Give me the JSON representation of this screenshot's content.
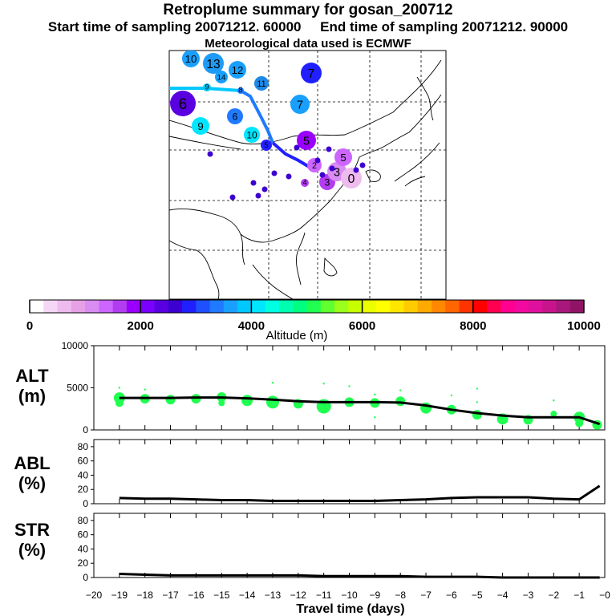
{
  "header": {
    "title": "Retroplume summary for gosan_200712",
    "start_label": "Start time of sampling 20071212. 60000",
    "end_label": "End time of sampling 20071212. 90000",
    "met": "Meteorological data used is ECMWF"
  },
  "colorbar": {
    "ticks": [
      "0",
      "2000",
      "4000",
      "6000",
      "8000",
      "10000"
    ],
    "label": "Altitude (m)",
    "colors": [
      "#ffffff",
      "#f5d6f5",
      "#eebbee",
      "#e6a1e6",
      "#d98cf2",
      "#cc66ff",
      "#b23cf0",
      "#9900ff",
      "#7a00ff",
      "#5a00e0",
      "#3c00d0",
      "#2020ff",
      "#1e50ff",
      "#1f7aff",
      "#19a0ff",
      "#00c8ff",
      "#00e6ff",
      "#00ffe0",
      "#00ffb0",
      "#00ff80",
      "#20ff50",
      "#60ff30",
      "#9aff1a",
      "#c8ff00",
      "#ecff00",
      "#ffff00",
      "#ffe600",
      "#ffcc00",
      "#ffaa00",
      "#ff8800",
      "#ff6600",
      "#ff3300",
      "#ff0000",
      "#ff0050",
      "#ff0090",
      "#f20aa0",
      "#e0109e",
      "#c8148c",
      "#a8187c",
      "#901466"
    ]
  },
  "map": {
    "points": [
      {
        "label": "10",
        "color": "#19a0ff"
      },
      {
        "label": "13",
        "color": "#1f9bf5"
      },
      {
        "label": "14",
        "color": "#19a0ff"
      },
      {
        "label": "12",
        "color": "#19a0ff"
      },
      {
        "label": "7",
        "color": "#2020ff"
      },
      {
        "label": "9",
        "color": "#00c8ff"
      },
      {
        "label": "8",
        "color": "#1f7aff"
      },
      {
        "label": "11",
        "color": "#1e88e5"
      },
      {
        "label": "6",
        "color": "#5a00e0"
      },
      {
        "label": "7",
        "color": "#19a0ff"
      },
      {
        "label": "9",
        "color": "#00e6ff"
      },
      {
        "label": "6",
        "color": "#1f7aff"
      },
      {
        "label": "10",
        "color": "#00e6ff"
      },
      {
        "label": "5",
        "color": "#9900ff"
      },
      {
        "label": "5",
        "color": "#2020ff"
      },
      {
        "label": "3",
        "color": "#b23cf0"
      },
      {
        "label": "2",
        "color": "#cc66ff"
      },
      {
        "label": "4",
        "color": "#b23cf0"
      },
      {
        "label": "3",
        "color": "#d98cf2"
      },
      {
        "label": "0",
        "color": "#eebbee"
      },
      {
        "label": "5",
        "color": "#cc66ff"
      }
    ]
  },
  "chart_data": [
    {
      "type": "line",
      "name": "ALT",
      "ylabel": "ALT (m)",
      "xlabel": "Travel time (days)",
      "ylim": [
        0,
        10000
      ],
      "yticks": [
        "0",
        "5000",
        "10000"
      ],
      "xlim": [
        -20,
        0
      ],
      "xticks": [
        "−20",
        "−19",
        "−18",
        "−17",
        "−16",
        "−15",
        "−14",
        "−13",
        "−12",
        "−11",
        "−10",
        "−9",
        "−8",
        "−7",
        "−6",
        "−5",
        "−4",
        "−3",
        "−2",
        "−1",
        "−0"
      ],
      "x": [
        -19,
        -18,
        -17,
        -16,
        -15,
        -14,
        -13,
        -12,
        -11,
        -10,
        -9,
        -8,
        -7,
        -6,
        -5,
        -4,
        -3,
        -2,
        -1,
        -0.2
      ],
      "y": [
        3800,
        3800,
        3800,
        3850,
        3850,
        3750,
        3600,
        3400,
        3300,
        3300,
        3300,
        3250,
        2900,
        2400,
        2000,
        1700,
        1500,
        1500,
        1500,
        700
      ]
    },
    {
      "type": "line",
      "name": "ABL",
      "ylabel": "ABL (%)",
      "ylim": [
        0,
        90
      ],
      "yticks": [
        "0",
        "20",
        "40",
        "60",
        "80"
      ],
      "x": [
        -19,
        -18,
        -17,
        -16,
        -15,
        -14,
        -13,
        -12,
        -11,
        -10,
        -9,
        -8,
        -7,
        -6,
        -5,
        -4,
        -3,
        -2,
        -1,
        -0.2
      ],
      "y": [
        8,
        7,
        7,
        6,
        5,
        5,
        4,
        4,
        4,
        4,
        4,
        5,
        6,
        8,
        9,
        9,
        9,
        7,
        6,
        25
      ]
    },
    {
      "type": "line",
      "name": "STR",
      "ylabel": "STR (%)",
      "ylim": [
        0,
        90
      ],
      "yticks": [
        "0",
        "20",
        "40",
        "60",
        "80"
      ],
      "x": [
        -19,
        -18,
        -17,
        -16,
        -15,
        -14,
        -13,
        -12,
        -11,
        -10,
        -9,
        -8,
        -7,
        -6,
        -5,
        -4,
        -3,
        -2,
        -1,
        -0.2
      ],
      "y": [
        5,
        4,
        3,
        3,
        3,
        3,
        3,
        3,
        2,
        2,
        2,
        2,
        1,
        1,
        1,
        0,
        0,
        0,
        0,
        0
      ]
    }
  ],
  "alt_dots": [
    {
      "x": -19,
      "y": 3800,
      "s": 7
    },
    {
      "x": -19,
      "y": 3200,
      "s": 5
    },
    {
      "x": -18,
      "y": 3700,
      "s": 6
    },
    {
      "x": -17,
      "y": 3600,
      "s": 6
    },
    {
      "x": -16,
      "y": 3700,
      "s": 6
    },
    {
      "x": -15,
      "y": 3900,
      "s": 6
    },
    {
      "x": -15,
      "y": 3200,
      "s": 4
    },
    {
      "x": -14,
      "y": 3500,
      "s": 7
    },
    {
      "x": -13,
      "y": 3300,
      "s": 8
    },
    {
      "x": -12,
      "y": 3100,
      "s": 6
    },
    {
      "x": -11,
      "y": 2800,
      "s": 9
    },
    {
      "x": -10,
      "y": 3300,
      "s": 6
    },
    {
      "x": -9,
      "y": 3200,
      "s": 6
    },
    {
      "x": -8,
      "y": 3400,
      "s": 6
    },
    {
      "x": -7,
      "y": 2600,
      "s": 7
    },
    {
      "x": -6,
      "y": 2400,
      "s": 6
    },
    {
      "x": -5,
      "y": 1800,
      "s": 6
    },
    {
      "x": -4,
      "y": 1300,
      "s": 7
    },
    {
      "x": -3,
      "y": 1200,
      "s": 6
    },
    {
      "x": -2,
      "y": 1900,
      "s": 4
    },
    {
      "x": -1,
      "y": 1500,
      "s": 7
    },
    {
      "x": -1,
      "y": 800,
      "s": 5
    },
    {
      "x": -0.3,
      "y": 600,
      "s": 6
    }
  ],
  "panel_labels": {
    "alt": [
      "ALT",
      "(m)"
    ],
    "abl": [
      "ABL",
      "(%)"
    ],
    "str": [
      "STR",
      "(%)"
    ]
  }
}
